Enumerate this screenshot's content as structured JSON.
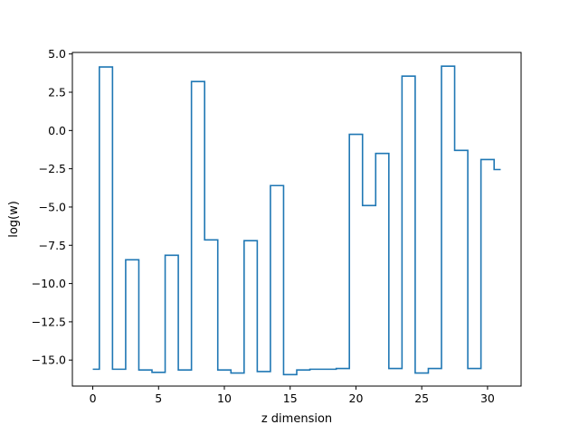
{
  "chart_data": {
    "type": "line",
    "drawstyle": "steps-mid",
    "xlabel": "z dimension",
    "ylabel": "log(w)",
    "xlim": [
      -1.55,
      32.55
    ],
    "ylim": [
      -16.7,
      5.1
    ],
    "xticks": [
      0,
      5,
      10,
      15,
      20,
      25,
      30
    ],
    "yticks": [
      5.0,
      2.5,
      0.0,
      -2.5,
      -5.0,
      -7.5,
      -10.0,
      -12.5,
      -15.0
    ],
    "ytick_labels": [
      "5.0",
      "2.5",
      "0.0",
      "−2.5",
      "−5.0",
      "−7.5",
      "−10.0",
      "−12.5",
      "−15.0"
    ],
    "grid": false,
    "series": [
      {
        "color": "#1f77b4",
        "x": [
          0,
          1,
          2,
          3,
          4,
          5,
          6,
          7,
          8,
          9,
          10,
          11,
          12,
          13,
          14,
          15,
          16,
          17,
          18,
          19,
          20,
          21,
          22,
          23,
          24,
          25,
          26,
          27,
          28,
          29,
          30,
          31
        ],
        "y": [
          -15.6,
          4.15,
          -15.6,
          -8.45,
          -15.65,
          -15.8,
          -8.15,
          -15.65,
          3.2,
          -7.15,
          -15.65,
          -15.85,
          -7.2,
          -15.75,
          -3.6,
          -15.95,
          -15.65,
          -15.6,
          -15.6,
          -15.55,
          -0.25,
          -4.9,
          -1.5,
          -15.55,
          3.55,
          -15.85,
          -15.55,
          4.2,
          -1.3,
          -15.55,
          -1.9,
          -2.55
        ]
      }
    ]
  }
}
